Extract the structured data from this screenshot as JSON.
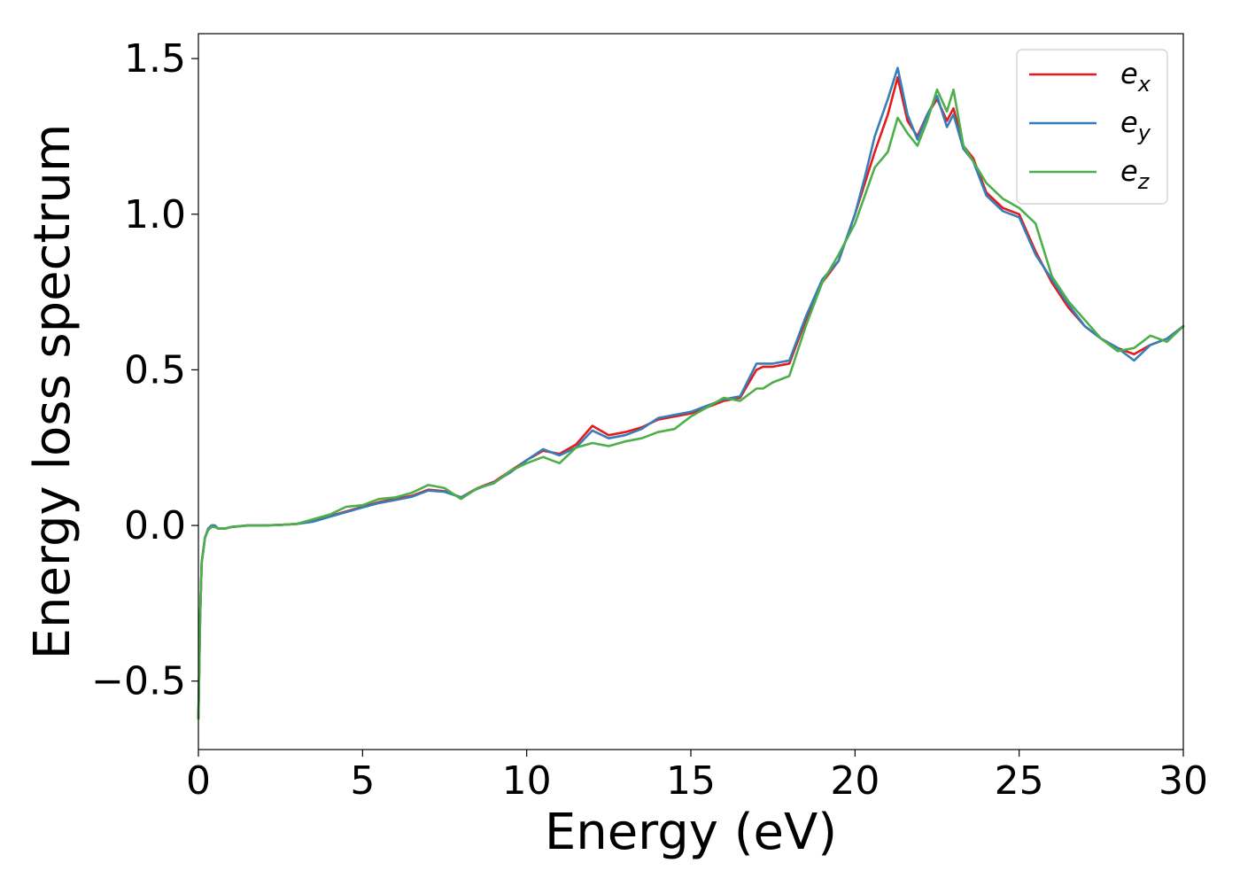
{
  "chart_data": {
    "type": "line",
    "xlabel": "Energy (eV)",
    "ylabel": "Energy loss spectrum",
    "xlim": [
      0,
      30
    ],
    "ylim": [
      -0.72,
      1.58
    ],
    "xticks": [
      0,
      5,
      10,
      15,
      20,
      25,
      30
    ],
    "xtick_labels": [
      "0",
      "5",
      "10",
      "15",
      "20",
      "25",
      "30"
    ],
    "yticks": [
      -0.5,
      0.0,
      0.5,
      1.0,
      1.5
    ],
    "ytick_labels": [
      "−0.5",
      "0.0",
      "0.5",
      "1.0",
      "1.5"
    ],
    "grid": false,
    "legend_position": "top-right",
    "series": [
      {
        "name": "e_x",
        "legend_base": "e",
        "legend_sub": "x",
        "color": "#e41a1c",
        "x": [
          0,
          0.05,
          0.1,
          0.2,
          0.3,
          0.4,
          0.5,
          0.6,
          0.8,
          1.0,
          1.5,
          2.0,
          2.5,
          3.0,
          3.5,
          4.0,
          4.5,
          5.0,
          5.5,
          6.0,
          6.5,
          7.0,
          7.5,
          8.0,
          8.5,
          9.0,
          9.5,
          10.0,
          10.5,
          11.0,
          11.5,
          12.0,
          12.5,
          13.0,
          13.5,
          14.0,
          14.5,
          15.0,
          15.5,
          16.0,
          16.5,
          17.0,
          17.2,
          17.5,
          18.0,
          18.5,
          19.0,
          19.5,
          20.0,
          20.3,
          20.6,
          21.0,
          21.3,
          21.6,
          21.9,
          22.2,
          22.5,
          22.8,
          23.0,
          23.3,
          23.6,
          24.0,
          24.5,
          25.0,
          25.5,
          26.0,
          26.5,
          27.0,
          27.5,
          28.0,
          28.5,
          29.0,
          29.5,
          30.0
        ],
        "y": [
          -0.62,
          -0.3,
          -0.12,
          -0.04,
          -0.01,
          0.0,
          0.0,
          -0.01,
          -0.01,
          -0.005,
          0.0,
          0.0,
          0.002,
          0.005,
          0.015,
          0.03,
          0.045,
          0.06,
          0.075,
          0.085,
          0.095,
          0.115,
          0.11,
          0.09,
          0.12,
          0.14,
          0.175,
          0.21,
          0.24,
          0.23,
          0.26,
          0.32,
          0.29,
          0.3,
          0.315,
          0.34,
          0.35,
          0.36,
          0.38,
          0.4,
          0.41,
          0.5,
          0.51,
          0.51,
          0.52,
          0.66,
          0.78,
          0.85,
          1.0,
          1.1,
          1.2,
          1.32,
          1.44,
          1.3,
          1.25,
          1.32,
          1.37,
          1.3,
          1.34,
          1.22,
          1.18,
          1.07,
          1.02,
          1.0,
          0.88,
          0.78,
          0.7,
          0.64,
          0.6,
          0.57,
          0.55,
          0.58,
          0.6,
          0.64
        ]
      },
      {
        "name": "e_y",
        "legend_base": "e",
        "legend_sub": "y",
        "color": "#377eb8",
        "x": [
          0,
          0.05,
          0.1,
          0.2,
          0.3,
          0.4,
          0.5,
          0.6,
          0.8,
          1.0,
          1.5,
          2.0,
          2.5,
          3.0,
          3.5,
          4.0,
          4.5,
          5.0,
          5.5,
          6.0,
          6.5,
          7.0,
          7.5,
          8.0,
          8.5,
          9.0,
          9.5,
          10.0,
          10.5,
          11.0,
          11.5,
          12.0,
          12.5,
          13.0,
          13.5,
          14.0,
          14.5,
          15.0,
          15.5,
          16.0,
          16.5,
          17.0,
          17.2,
          17.5,
          18.0,
          18.5,
          19.0,
          19.5,
          20.0,
          20.3,
          20.6,
          21.0,
          21.3,
          21.6,
          21.9,
          22.2,
          22.5,
          22.8,
          23.0,
          23.3,
          23.6,
          24.0,
          24.5,
          25.0,
          25.5,
          26.0,
          26.5,
          27.0,
          27.5,
          28.0,
          28.5,
          29.0,
          29.5,
          30.0
        ],
        "y": [
          -0.62,
          -0.3,
          -0.12,
          -0.04,
          -0.01,
          0.0,
          0.0,
          -0.01,
          -0.01,
          -0.005,
          0.0,
          0.0,
          0.002,
          0.005,
          0.012,
          0.028,
          0.043,
          0.058,
          0.072,
          0.082,
          0.092,
          0.112,
          0.108,
          0.09,
          0.118,
          0.138,
          0.17,
          0.21,
          0.245,
          0.225,
          0.25,
          0.305,
          0.28,
          0.29,
          0.31,
          0.345,
          0.355,
          0.365,
          0.385,
          0.405,
          0.415,
          0.52,
          0.52,
          0.52,
          0.53,
          0.67,
          0.79,
          0.85,
          1.0,
          1.12,
          1.25,
          1.37,
          1.47,
          1.32,
          1.24,
          1.32,
          1.38,
          1.28,
          1.32,
          1.21,
          1.17,
          1.06,
          1.01,
          0.99,
          0.87,
          0.79,
          0.71,
          0.64,
          0.6,
          0.57,
          0.53,
          0.58,
          0.6,
          0.64
        ]
      },
      {
        "name": "e_z",
        "legend_base": "e",
        "legend_sub": "z",
        "color": "#4daf4a",
        "x": [
          0,
          0.05,
          0.1,
          0.2,
          0.3,
          0.4,
          0.5,
          0.6,
          0.8,
          1.0,
          1.5,
          2.0,
          2.5,
          3.0,
          3.5,
          4.0,
          4.5,
          5.0,
          5.5,
          6.0,
          6.5,
          7.0,
          7.5,
          8.0,
          8.5,
          9.0,
          9.5,
          10.0,
          10.5,
          11.0,
          11.5,
          12.0,
          12.5,
          13.0,
          13.5,
          14.0,
          14.5,
          15.0,
          15.5,
          16.0,
          16.5,
          17.0,
          17.2,
          17.5,
          18.0,
          18.5,
          19.0,
          19.5,
          20.0,
          20.3,
          20.6,
          21.0,
          21.3,
          21.6,
          21.9,
          22.2,
          22.5,
          22.8,
          23.0,
          23.3,
          23.6,
          24.0,
          24.5,
          25.0,
          25.5,
          26.0,
          26.5,
          27.0,
          27.5,
          28.0,
          28.5,
          29.0,
          29.5,
          30.0
        ],
        "y": [
          -0.62,
          -0.3,
          -0.12,
          -0.04,
          -0.015,
          -0.005,
          -0.005,
          -0.01,
          -0.01,
          -0.005,
          0.0,
          0.0,
          0.002,
          0.005,
          0.02,
          0.035,
          0.06,
          0.065,
          0.085,
          0.09,
          0.105,
          0.13,
          0.12,
          0.085,
          0.12,
          0.135,
          0.175,
          0.2,
          0.22,
          0.2,
          0.25,
          0.265,
          0.255,
          0.27,
          0.28,
          0.3,
          0.31,
          0.35,
          0.38,
          0.41,
          0.4,
          0.44,
          0.44,
          0.46,
          0.48,
          0.64,
          0.78,
          0.87,
          0.97,
          1.06,
          1.15,
          1.2,
          1.31,
          1.26,
          1.22,
          1.3,
          1.4,
          1.33,
          1.4,
          1.22,
          1.17,
          1.1,
          1.05,
          1.02,
          0.97,
          0.8,
          0.72,
          0.66,
          0.6,
          0.56,
          0.57,
          0.61,
          0.59,
          0.64
        ]
      }
    ]
  }
}
